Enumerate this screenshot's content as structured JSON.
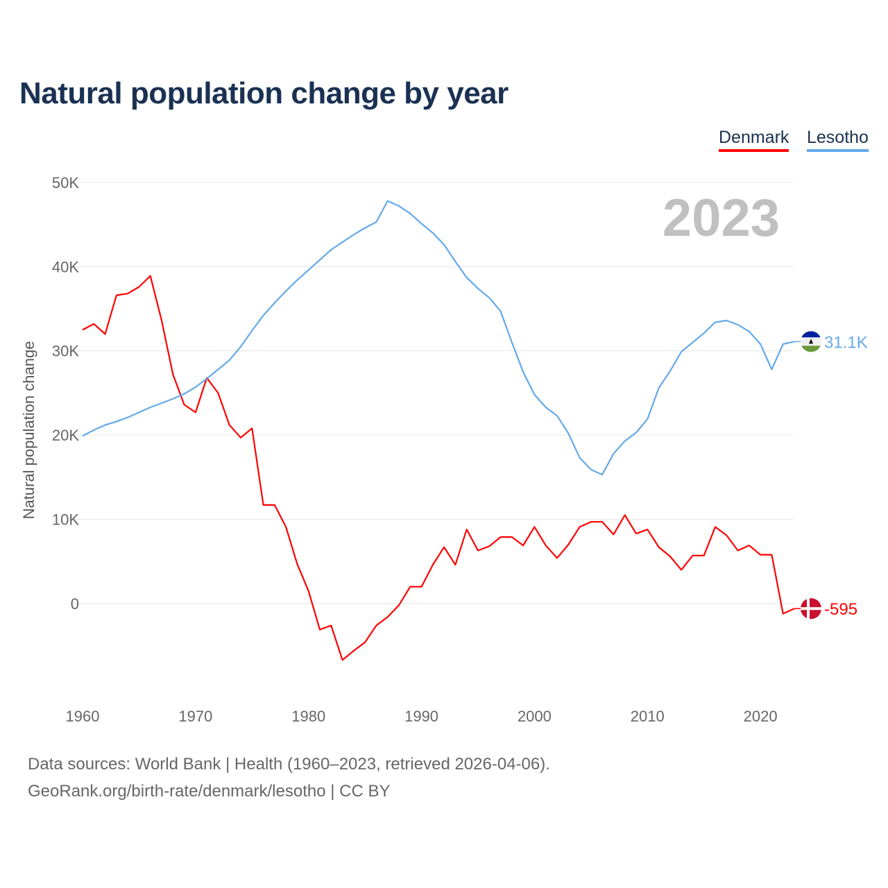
{
  "title": "Natural population change by year",
  "footer": {
    "line1": "Data sources: World Bank | Health (1960–2023, retrieved 2026-04-06).",
    "line2": "GeoRank.org/birth-rate/denmark/lesotho | CC BY"
  },
  "chart_data": {
    "type": "line",
    "title": "Natural population change by year",
    "ylabel": "Natural population change",
    "xlabel": "",
    "year_watermark": "2023",
    "xlim": [
      1960,
      2023
    ],
    "ylim": [
      -10000,
      50000
    ],
    "x_ticks": [
      "1960",
      "1970",
      "1980",
      "1990",
      "2000",
      "2010",
      "2020"
    ],
    "y_ticks": [
      {
        "v": 0,
        "label": "0"
      },
      {
        "v": 10000,
        "label": "10K"
      },
      {
        "v": 20000,
        "label": "20K"
      },
      {
        "v": 30000,
        "label": "30K"
      },
      {
        "v": 40000,
        "label": "40K"
      },
      {
        "v": 50000,
        "label": "50K"
      }
    ],
    "grid": true,
    "legend_position": "top-right",
    "start_year": 1960,
    "series": [
      {
        "name": "Denmark",
        "color": "#ff0000",
        "flag": "denmark-flag",
        "end_label": "-595",
        "values": [
          32500,
          33200,
          32000,
          36600,
          36800,
          37600,
          38900,
          33600,
          27200,
          23600,
          22700,
          26800,
          25000,
          21200,
          19700,
          20800,
          11700,
          11700,
          9100,
          4700,
          1500,
          -3100,
          -2600,
          -6700,
          -5600,
          -4600,
          -2600,
          -1600,
          -200,
          2000,
          2000,
          4600,
          6700,
          4600,
          8800,
          6300,
          6800,
          7900,
          7900,
          6900,
          9100,
          6900,
          5400,
          7000,
          9100,
          9700,
          9700,
          8200,
          10500,
          8300,
          8800,
          6700,
          5600,
          4000,
          5700,
          5700,
          9100,
          8100,
          6300,
          6900,
          5800,
          5800,
          -1200,
          -595
        ]
      },
      {
        "name": "Lesotho",
        "color": "#63a9ea",
        "flag": "lesotho-flag",
        "end_label": "31.1K",
        "values": [
          19900,
          20600,
          21200,
          21600,
          22100,
          22700,
          23300,
          23800,
          24300,
          24900,
          25700,
          26700,
          27800,
          28900,
          30500,
          32400,
          34200,
          35700,
          37100,
          38400,
          39600,
          40800,
          42000,
          42900,
          43800,
          44600,
          45300,
          47800,
          47200,
          46300,
          45100,
          44000,
          42600,
          40600,
          38700,
          37400,
          36300,
          34700,
          31000,
          27500,
          24800,
          23300,
          22300,
          20200,
          17300,
          15900,
          15300,
          17800,
          19300,
          20300,
          21900,
          25600,
          27600,
          29900,
          31000,
          32100,
          33400,
          33600,
          33100,
          32300,
          30800,
          27800,
          30800,
          31100
        ]
      }
    ]
  }
}
